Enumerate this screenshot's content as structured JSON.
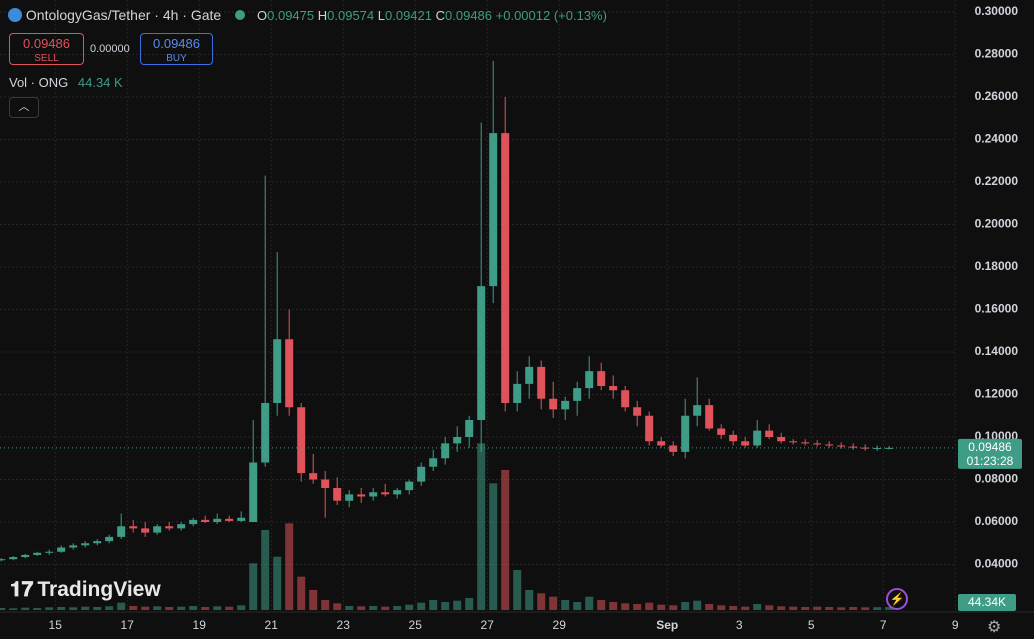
{
  "chart_data": {
    "type": "candlestick",
    "title": "OntologyGas/Tether · 4h · Gate",
    "ohlc_letters": [
      "O",
      "H",
      "L",
      "C"
    ],
    "change": "+0.00012 (+0.13%)",
    "sell_label": "SELL",
    "buy_label": "BUY",
    "spread": "0.00000",
    "volume_label": "Vol · ONG",
    "volume_value_label": "44.34 K",
    "volume_axis_label": "44.34K",
    "countdown": "01:23:28",
    "logo": "TradingView",
    "up_color": "#3e9c87",
    "down_color": "#e0535b",
    "grid": true,
    "ylim": [
      0.02,
      0.3
    ],
    "yticks": [
      {
        "value": 0.04,
        "label": "0.04000"
      },
      {
        "value": 0.06,
        "label": "0.06000"
      },
      {
        "value": 0.08,
        "label": "0.08000"
      },
      {
        "value": 0.1,
        "label": "0.10000"
      },
      {
        "value": 0.12,
        "label": "0.12000"
      },
      {
        "value": 0.14,
        "label": "0.14000"
      },
      {
        "value": 0.16,
        "label": "0.16000"
      },
      {
        "value": 0.18,
        "label": "0.18000"
      },
      {
        "value": 0.2,
        "label": "0.20000"
      },
      {
        "value": 0.22,
        "label": "0.22000"
      },
      {
        "value": 0.24,
        "label": "0.24000"
      },
      {
        "value": 0.26,
        "label": "0.26000"
      },
      {
        "value": 0.28,
        "label": "0.28000"
      },
      {
        "value": 0.3,
        "label": "0.30000"
      }
    ],
    "xlim": [
      -0.1,
      79.9
    ],
    "xticks": [
      {
        "value": 4.5,
        "label": "15"
      },
      {
        "value": 10.5,
        "label": "17"
      },
      {
        "value": 16.5,
        "label": "19"
      },
      {
        "value": 22.5,
        "label": "21"
      },
      {
        "value": 28.5,
        "label": "23"
      },
      {
        "value": 34.5,
        "label": "25"
      },
      {
        "value": 40.5,
        "label": "27"
      },
      {
        "value": 46.5,
        "label": "29"
      },
      {
        "value": 55.5,
        "label": "Sep"
      },
      {
        "value": 61.5,
        "label": "3"
      },
      {
        "value": 67.5,
        "label": "5"
      },
      {
        "value": 73.5,
        "label": "7"
      },
      {
        "value": 79.5,
        "label": "9"
      }
    ],
    "volume_lim": [
      0,
      3000
    ],
    "ohlc": [
      [
        0.042,
        0.043,
        0.0415,
        0.0425
      ],
      [
        0.0425,
        0.044,
        0.042,
        0.0435
      ],
      [
        0.0435,
        0.045,
        0.043,
        0.0445
      ],
      [
        0.0445,
        0.046,
        0.044,
        0.0455
      ],
      [
        0.0455,
        0.047,
        0.0445,
        0.046
      ],
      [
        0.046,
        0.049,
        0.0455,
        0.048
      ],
      [
        0.048,
        0.05,
        0.047,
        0.049
      ],
      [
        0.049,
        0.051,
        0.048,
        0.05
      ],
      [
        0.05,
        0.052,
        0.049,
        0.051
      ],
      [
        0.051,
        0.054,
        0.05,
        0.053
      ],
      [
        0.053,
        0.064,
        0.052,
        0.058
      ],
      [
        0.058,
        0.061,
        0.055,
        0.057
      ],
      [
        0.057,
        0.06,
        0.053,
        0.055
      ],
      [
        0.055,
        0.059,
        0.054,
        0.058
      ],
      [
        0.058,
        0.06,
        0.056,
        0.057
      ],
      [
        0.057,
        0.06,
        0.056,
        0.059
      ],
      [
        0.059,
        0.062,
        0.058,
        0.061
      ],
      [
        0.061,
        0.063,
        0.0595,
        0.06
      ],
      [
        0.06,
        0.064,
        0.059,
        0.0615
      ],
      [
        0.0615,
        0.063,
        0.06,
        0.0605
      ],
      [
        0.0605,
        0.065,
        0.06,
        0.062
      ],
      [
        0.06,
        0.108,
        0.06,
        0.088
      ],
      [
        0.088,
        0.223,
        0.086,
        0.116
      ],
      [
        0.116,
        0.187,
        0.11,
        0.146
      ],
      [
        0.146,
        0.16,
        0.11,
        0.114
      ],
      [
        0.114,
        0.116,
        0.079,
        0.083
      ],
      [
        0.083,
        0.092,
        0.078,
        0.08
      ],
      [
        0.08,
        0.084,
        0.062,
        0.076
      ],
      [
        0.076,
        0.081,
        0.068,
        0.07
      ],
      [
        0.07,
        0.075,
        0.067,
        0.073
      ],
      [
        0.073,
        0.076,
        0.069,
        0.072
      ],
      [
        0.072,
        0.076,
        0.07,
        0.074
      ],
      [
        0.074,
        0.078,
        0.072,
        0.073
      ],
      [
        0.073,
        0.076,
        0.071,
        0.075
      ],
      [
        0.075,
        0.08,
        0.073,
        0.079
      ],
      [
        0.079,
        0.088,
        0.077,
        0.086
      ],
      [
        0.086,
        0.094,
        0.084,
        0.09
      ],
      [
        0.09,
        0.1,
        0.087,
        0.097
      ],
      [
        0.097,
        0.105,
        0.093,
        0.1
      ],
      [
        0.1,
        0.11,
        0.095,
        0.108
      ],
      [
        0.108,
        0.248,
        0.093,
        0.171
      ],
      [
        0.171,
        0.277,
        0.163,
        0.243
      ],
      [
        0.243,
        0.26,
        0.112,
        0.116
      ],
      [
        0.116,
        0.131,
        0.112,
        0.125
      ],
      [
        0.125,
        0.138,
        0.118,
        0.133
      ],
      [
        0.133,
        0.136,
        0.113,
        0.118
      ],
      [
        0.118,
        0.126,
        0.109,
        0.113
      ],
      [
        0.113,
        0.119,
        0.108,
        0.117
      ],
      [
        0.117,
        0.126,
        0.11,
        0.123
      ],
      [
        0.123,
        0.138,
        0.118,
        0.131
      ],
      [
        0.131,
        0.135,
        0.122,
        0.124
      ],
      [
        0.124,
        0.129,
        0.118,
        0.122
      ],
      [
        0.122,
        0.124,
        0.112,
        0.114
      ],
      [
        0.114,
        0.117,
        0.105,
        0.11
      ],
      [
        0.11,
        0.112,
        0.096,
        0.098
      ],
      [
        0.098,
        0.1,
        0.095,
        0.096
      ],
      [
        0.096,
        0.098,
        0.091,
        0.093
      ],
      [
        0.093,
        0.118,
        0.09,
        0.11
      ],
      [
        0.11,
        0.128,
        0.105,
        0.115
      ],
      [
        0.115,
        0.118,
        0.103,
        0.104
      ],
      [
        0.104,
        0.106,
        0.099,
        0.101
      ],
      [
        0.101,
        0.103,
        0.096,
        0.098
      ],
      [
        0.098,
        0.1,
        0.095,
        0.096
      ],
      [
        0.096,
        0.108,
        0.095,
        0.103
      ],
      [
        0.103,
        0.106,
        0.099,
        0.1
      ],
      [
        0.1,
        0.102,
        0.097,
        0.098
      ],
      [
        0.098,
        0.099,
        0.0965,
        0.0975
      ],
      [
        0.0975,
        0.099,
        0.096,
        0.097
      ],
      [
        0.097,
        0.0985,
        0.0955,
        0.0965
      ],
      [
        0.0965,
        0.098,
        0.095,
        0.096
      ],
      [
        0.096,
        0.0975,
        0.0945,
        0.0955
      ],
      [
        0.0955,
        0.097,
        0.094,
        0.095
      ],
      [
        0.095,
        0.0965,
        0.0935,
        0.0945
      ],
      [
        0.0945,
        0.096,
        0.0935,
        0.0948
      ],
      [
        0.09475,
        0.09574,
        0.09421,
        0.09486
      ]
    ],
    "volume": [
      30,
      25,
      35,
      30,
      40,
      45,
      40,
      50,
      45,
      55,
      110,
      60,
      50,
      55,
      45,
      50,
      60,
      45,
      55,
      50,
      70,
      700,
      1200,
      800,
      1300,
      500,
      300,
      150,
      100,
      60,
      55,
      60,
      50,
      60,
      80,
      110,
      150,
      120,
      140,
      180,
      2500,
      1900,
      2100,
      600,
      300,
      250,
      200,
      150,
      120,
      200,
      150,
      120,
      100,
      90,
      110,
      80,
      70,
      120,
      140,
      90,
      70,
      60,
      50,
      90,
      70,
      55,
      50,
      45,
      50,
      45,
      40,
      45,
      40,
      42,
      44.34
    ]
  }
}
